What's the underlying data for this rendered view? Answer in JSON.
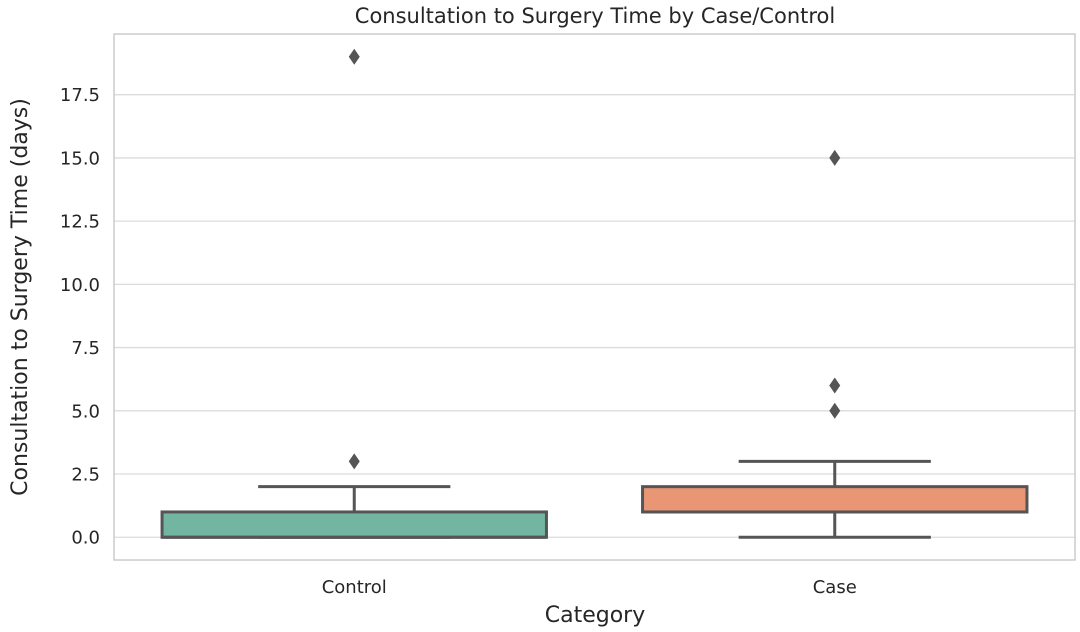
{
  "chart_data": {
    "type": "box",
    "title": "Consultation to Surgery Time by Case/Control",
    "xlabel": "Category",
    "ylabel": "Consultation to Surgery Time (days)",
    "ylim": [
      -0.9,
      19.9
    ],
    "yticks": [
      0.0,
      2.5,
      5.0,
      7.5,
      10.0,
      12.5,
      15.0,
      17.5
    ],
    "ytick_labels": [
      "0.0",
      "2.5",
      "5.0",
      "7.5",
      "10.0",
      "12.5",
      "15.0",
      "17.5"
    ],
    "grid": true,
    "categories": [
      "Control",
      "Case"
    ],
    "boxes": [
      {
        "category": "Control",
        "color": "#72b6a1",
        "whisker_low": 0,
        "q1": 0,
        "median": 0,
        "q3": 1,
        "whisker_high": 2,
        "outliers": [
          3,
          19
        ]
      },
      {
        "category": "Case",
        "color": "#e99675",
        "whisker_low": 0,
        "q1": 1,
        "median": 1,
        "q3": 2,
        "whisker_high": 3,
        "outliers": [
          5,
          6,
          15
        ]
      }
    ]
  }
}
